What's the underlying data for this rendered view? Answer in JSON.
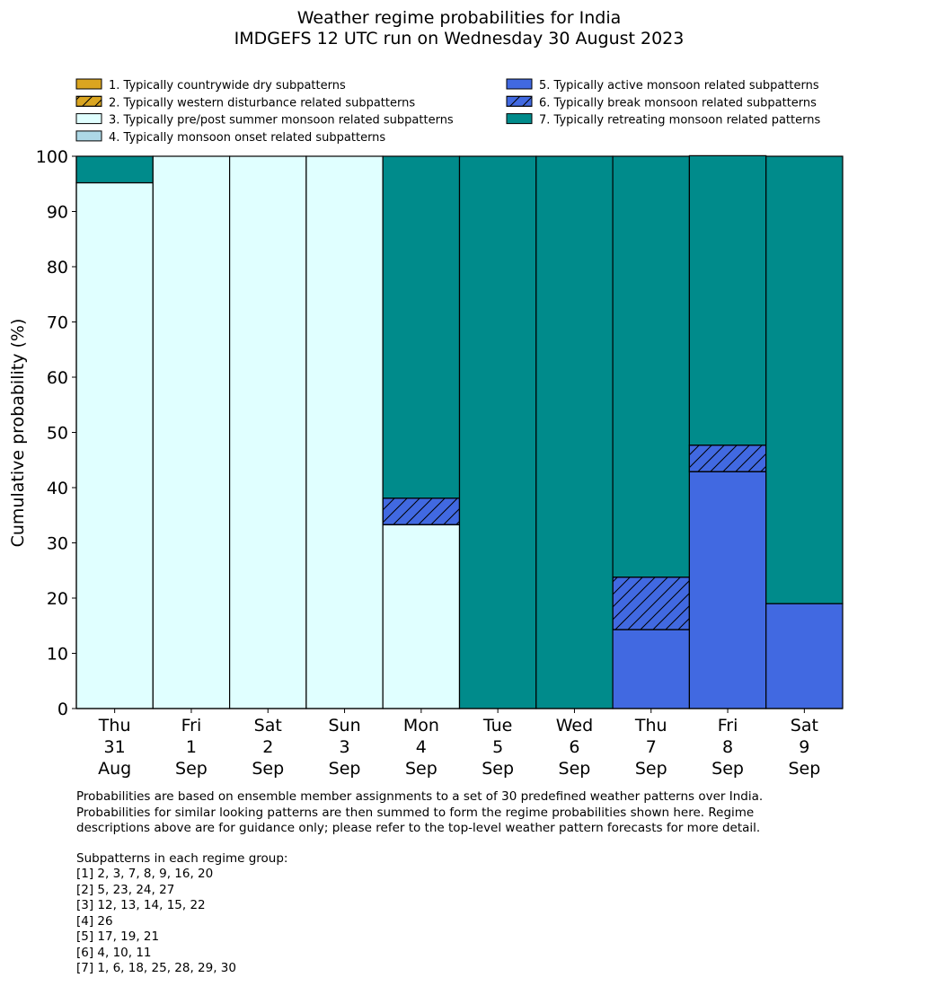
{
  "chart_data": {
    "type": "bar",
    "stacked": true,
    "title": "Weather regime probabilities for India",
    "subtitle": "IMDGEFS 12 UTC run on Wednesday 30 August 2023",
    "ylabel": "Cumulative probability (%)",
    "xlabel": "",
    "ylim": [
      0,
      100
    ],
    "yticks": [
      "0",
      "10",
      "20",
      "30",
      "40",
      "50",
      "60",
      "70",
      "80",
      "90",
      "100"
    ],
    "categories": [
      [
        "Thu",
        "31",
        "Aug"
      ],
      [
        "Fri",
        "1",
        "Sep"
      ],
      [
        "Sat",
        "2",
        "Sep"
      ],
      [
        "Sun",
        "3",
        "Sep"
      ],
      [
        "Mon",
        "4",
        "Sep"
      ],
      [
        "Tue",
        "5",
        "Sep"
      ],
      [
        "Wed",
        "6",
        "Sep"
      ],
      [
        "Thu",
        "7",
        "Sep"
      ],
      [
        "Fri",
        "8",
        "Sep"
      ],
      [
        "Sat",
        "9",
        "Sep"
      ]
    ],
    "series": [
      {
        "name": "1. Typically countrywide dry subpatterns",
        "color": "#DAA520",
        "hatch": false,
        "values": [
          0,
          0,
          0,
          0,
          0,
          0,
          0,
          0,
          0,
          0
        ]
      },
      {
        "name": "2. Typically western disturbance related subpatterns",
        "color": "#DAA520",
        "hatch": true,
        "values": [
          0,
          0,
          0,
          0,
          0,
          0,
          0,
          0,
          0,
          0
        ]
      },
      {
        "name": "3. Typically pre/post summer monsoon related subpatterns",
        "color": "#E0FFFF",
        "hatch": false,
        "values": [
          95.2,
          100,
          100,
          100,
          33.3,
          0,
          0,
          0,
          0,
          0
        ]
      },
      {
        "name": "4. Typically monsoon onset related subpatterns",
        "color": "#ADD8E6",
        "hatch": false,
        "values": [
          0,
          0,
          0,
          0,
          0,
          0,
          0,
          0,
          0,
          0
        ]
      },
      {
        "name": "5. Typically active monsoon related subpatterns",
        "color": "#4169E1",
        "hatch": false,
        "values": [
          0,
          0,
          0,
          0,
          0,
          0,
          0,
          14.3,
          42.9,
          19.0
        ]
      },
      {
        "name": "6. Typically break monsoon related subpatterns",
        "color": "#4169E1",
        "hatch": true,
        "values": [
          0,
          0,
          0,
          0,
          4.8,
          0,
          0,
          9.5,
          4.8,
          0
        ]
      },
      {
        "name": "7. Typically retreating monsoon related patterns",
        "color": "#008B8B",
        "hatch": false,
        "values": [
          4.8,
          0,
          0,
          0,
          61.9,
          100,
          100,
          76.2,
          52.4,
          81.0
        ]
      }
    ],
    "legend_position": "top"
  },
  "notes": {
    "para": "Probabilities are based on ensemble member assignments to a set of 30 predefined weather patterns over India.\nProbabilities for similar looking patterns are then summed to form the regime probabilities shown here. Regime\ndescriptions above are for guidance only; please refer to the top-level weather pattern forecasts for more detail.",
    "groups_title": "Subpatterns in each regime group:",
    "groups": [
      "[1] 2, 3, 7, 8, 9, 16, 20",
      "[2] 5, 23, 24, 27",
      "[3] 12, 13, 14, 15, 22",
      "[4] 26",
      "[5] 17, 19, 21",
      "[6] 4, 10, 11",
      "[7] 1, 6, 18, 25, 28, 29, 30"
    ]
  }
}
